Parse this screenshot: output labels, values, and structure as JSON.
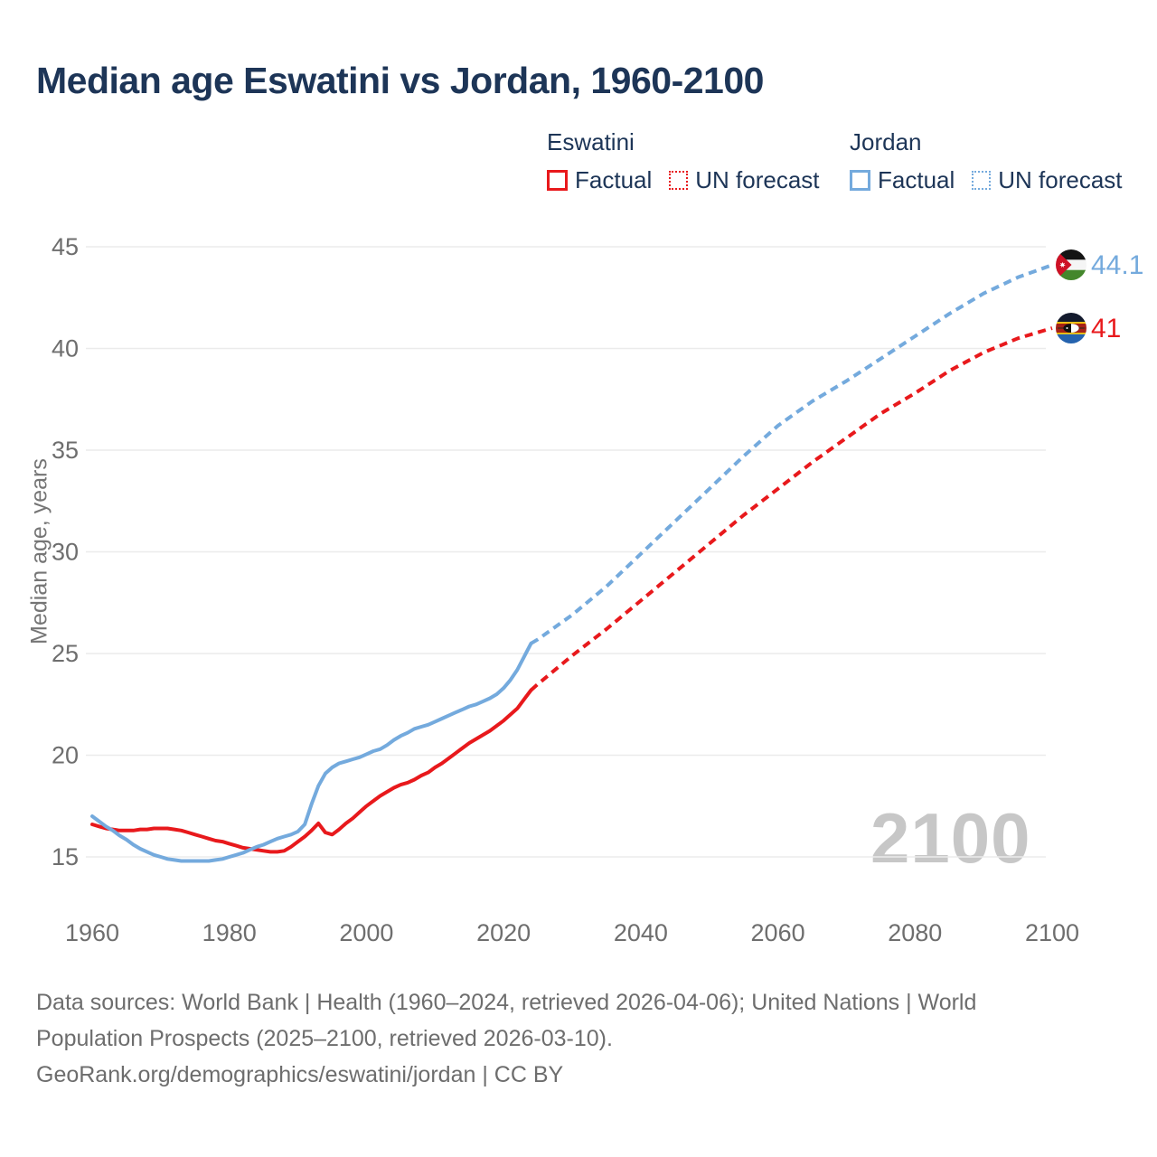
{
  "title": "Median age Eswatini vs Jordan, 1960-2100",
  "legend": {
    "groups": [
      {
        "label": "Eswatini",
        "color": "#e8191c",
        "items": [
          {
            "label": "Factual",
            "style": "solid"
          },
          {
            "label": "UN forecast",
            "style": "dotted"
          }
        ]
      },
      {
        "label": "Jordan",
        "color": "#74aadd",
        "items": [
          {
            "label": "Factual",
            "style": "solid"
          },
          {
            "label": "UN forecast",
            "style": "dotted"
          }
        ]
      }
    ]
  },
  "chart_data": {
    "type": "line",
    "title": "Median age Eswatini vs Jordan, 1960-2100",
    "xlabel": "",
    "ylabel": "Median age, years",
    "xlim": [
      1960,
      2100
    ],
    "ylim": [
      15,
      45
    ],
    "x_ticks": [
      1960,
      1980,
      2000,
      2020,
      2040,
      2060,
      2080,
      2100
    ],
    "y_ticks": [
      15,
      20,
      25,
      30,
      35,
      40,
      45
    ],
    "grid": "horizontal",
    "legend_position": "top",
    "series": [
      {
        "id": "eswatini-factual",
        "name": "Eswatini Factual",
        "color": "#e8191c",
        "style": "solid",
        "points": [
          [
            1960,
            16.6
          ],
          [
            1961,
            16.5
          ],
          [
            1962,
            16.4
          ],
          [
            1963,
            16.35
          ],
          [
            1964,
            16.3
          ],
          [
            1965,
            16.3
          ],
          [
            1966,
            16.3
          ],
          [
            1967,
            16.35
          ],
          [
            1968,
            16.35
          ],
          [
            1969,
            16.4
          ],
          [
            1970,
            16.4
          ],
          [
            1971,
            16.4
          ],
          [
            1972,
            16.35
          ],
          [
            1973,
            16.3
          ],
          [
            1974,
            16.2
          ],
          [
            1975,
            16.1
          ],
          [
            1976,
            16.0
          ],
          [
            1977,
            15.9
          ],
          [
            1978,
            15.8
          ],
          [
            1979,
            15.75
          ],
          [
            1980,
            15.65
          ],
          [
            1981,
            15.55
          ],
          [
            1982,
            15.45
          ],
          [
            1983,
            15.4
          ],
          [
            1984,
            15.35
          ],
          [
            1985,
            15.3
          ],
          [
            1986,
            15.25
          ],
          [
            1987,
            15.25
          ],
          [
            1988,
            15.3
          ],
          [
            1989,
            15.5
          ],
          [
            1990,
            15.75
          ],
          [
            1991,
            16.0
          ],
          [
            1992,
            16.3
          ],
          [
            1993,
            16.65
          ],
          [
            1994,
            16.2
          ],
          [
            1995,
            16.1
          ],
          [
            1996,
            16.35
          ],
          [
            1997,
            16.65
          ],
          [
            1998,
            16.9
          ],
          [
            1999,
            17.2
          ],
          [
            2000,
            17.5
          ],
          [
            2001,
            17.75
          ],
          [
            2002,
            18.0
          ],
          [
            2003,
            18.2
          ],
          [
            2004,
            18.4
          ],
          [
            2005,
            18.55
          ],
          [
            2006,
            18.65
          ],
          [
            2007,
            18.8
          ],
          [
            2008,
            19.0
          ],
          [
            2009,
            19.15
          ],
          [
            2010,
            19.4
          ],
          [
            2011,
            19.6
          ],
          [
            2012,
            19.85
          ],
          [
            2013,
            20.1
          ],
          [
            2014,
            20.35
          ],
          [
            2015,
            20.6
          ],
          [
            2016,
            20.8
          ],
          [
            2017,
            21.0
          ],
          [
            2018,
            21.2
          ],
          [
            2019,
            21.45
          ],
          [
            2020,
            21.7
          ],
          [
            2021,
            22.0
          ],
          [
            2022,
            22.3
          ],
          [
            2023,
            22.75
          ],
          [
            2024,
            23.2
          ]
        ]
      },
      {
        "id": "eswatini-forecast",
        "name": "Eswatini UN forecast",
        "color": "#e8191c",
        "style": "dashed",
        "points": [
          [
            2024,
            23.2
          ],
          [
            2025,
            23.5
          ],
          [
            2030,
            24.9
          ],
          [
            2035,
            26.2
          ],
          [
            2040,
            27.6
          ],
          [
            2045,
            29.0
          ],
          [
            2050,
            30.4
          ],
          [
            2055,
            31.8
          ],
          [
            2060,
            33.1
          ],
          [
            2065,
            34.4
          ],
          [
            2070,
            35.6
          ],
          [
            2075,
            36.8
          ],
          [
            2080,
            37.8
          ],
          [
            2085,
            38.9
          ],
          [
            2090,
            39.8
          ],
          [
            2095,
            40.5
          ],
          [
            2100,
            41.0
          ]
        ]
      },
      {
        "id": "jordan-factual",
        "name": "Jordan Factual",
        "color": "#74aadd",
        "style": "solid",
        "points": [
          [
            1960,
            17.0
          ],
          [
            1961,
            16.75
          ],
          [
            1962,
            16.5
          ],
          [
            1963,
            16.3
          ],
          [
            1964,
            16.05
          ],
          [
            1965,
            15.85
          ],
          [
            1966,
            15.6
          ],
          [
            1967,
            15.4
          ],
          [
            1968,
            15.25
          ],
          [
            1969,
            15.1
          ],
          [
            1970,
            15.0
          ],
          [
            1971,
            14.9
          ],
          [
            1972,
            14.85
          ],
          [
            1973,
            14.8
          ],
          [
            1974,
            14.8
          ],
          [
            1975,
            14.8
          ],
          [
            1976,
            14.8
          ],
          [
            1977,
            14.8
          ],
          [
            1978,
            14.85
          ],
          [
            1979,
            14.9
          ],
          [
            1980,
            15.0
          ],
          [
            1981,
            15.1
          ],
          [
            1982,
            15.2
          ],
          [
            1983,
            15.35
          ],
          [
            1984,
            15.5
          ],
          [
            1985,
            15.6
          ],
          [
            1986,
            15.75
          ],
          [
            1987,
            15.9
          ],
          [
            1988,
            16.0
          ],
          [
            1989,
            16.1
          ],
          [
            1990,
            16.25
          ],
          [
            1991,
            16.6
          ],
          [
            1992,
            17.6
          ],
          [
            1993,
            18.5
          ],
          [
            1994,
            19.1
          ],
          [
            1995,
            19.4
          ],
          [
            1996,
            19.6
          ],
          [
            1997,
            19.7
          ],
          [
            1998,
            19.8
          ],
          [
            1999,
            19.9
          ],
          [
            2000,
            20.05
          ],
          [
            2001,
            20.2
          ],
          [
            2002,
            20.3
          ],
          [
            2003,
            20.5
          ],
          [
            2004,
            20.75
          ],
          [
            2005,
            20.95
          ],
          [
            2006,
            21.1
          ],
          [
            2007,
            21.3
          ],
          [
            2008,
            21.4
          ],
          [
            2009,
            21.5
          ],
          [
            2010,
            21.65
          ],
          [
            2011,
            21.8
          ],
          [
            2012,
            21.95
          ],
          [
            2013,
            22.1
          ],
          [
            2014,
            22.25
          ],
          [
            2015,
            22.4
          ],
          [
            2016,
            22.5
          ],
          [
            2017,
            22.65
          ],
          [
            2018,
            22.8
          ],
          [
            2019,
            23.0
          ],
          [
            2020,
            23.3
          ],
          [
            2021,
            23.7
          ],
          [
            2022,
            24.2
          ],
          [
            2023,
            24.85
          ],
          [
            2024,
            25.5
          ]
        ]
      },
      {
        "id": "jordan-forecast",
        "name": "Jordan UN forecast",
        "color": "#74aadd",
        "style": "dashed",
        "points": [
          [
            2024,
            25.5
          ],
          [
            2025,
            25.7
          ],
          [
            2030,
            26.9
          ],
          [
            2035,
            28.3
          ],
          [
            2040,
            29.9
          ],
          [
            2045,
            31.5
          ],
          [
            2050,
            33.1
          ],
          [
            2055,
            34.7
          ],
          [
            2060,
            36.2
          ],
          [
            2065,
            37.4
          ],
          [
            2070,
            38.4
          ],
          [
            2075,
            39.5
          ],
          [
            2080,
            40.6
          ],
          [
            2085,
            41.7
          ],
          [
            2090,
            42.7
          ],
          [
            2095,
            43.5
          ],
          [
            2100,
            44.1
          ]
        ]
      }
    ],
    "end_labels": [
      {
        "series": "Jordan",
        "value": "44.1",
        "color": "#74aadd",
        "flag": "jordan-flag"
      },
      {
        "series": "Eswatini",
        "value": "41",
        "color": "#e8191c",
        "flag": "eswatini-flag"
      }
    ]
  },
  "watermark": "2100",
  "footer": {
    "lines": [
      "Data sources: World Bank | Health (1960–2024, retrieved 2026-04-06); United Nations | World",
      "Population Prospects (2025–2100, retrieved 2026-03-10).",
      "GeoRank.org/demographics/eswatini/jordan | CC BY"
    ]
  }
}
